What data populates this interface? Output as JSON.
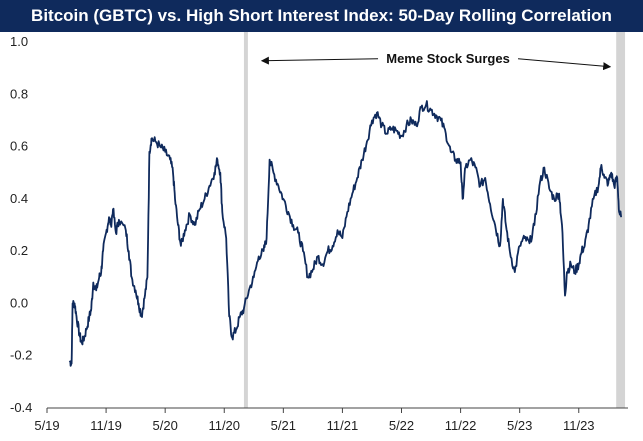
{
  "chart_data": {
    "type": "line",
    "title": "Bitcoin (GBTC) vs. High Short Interest Index: 50-Day Rolling Correlation",
    "xlabel": "",
    "ylabel": "",
    "ylim": [
      -0.4,
      1.0
    ],
    "y_ticks": [
      -0.4,
      -0.2,
      0.0,
      0.2,
      0.4,
      0.6,
      0.8,
      1.0
    ],
    "y_tick_labels": [
      "-0.4",
      "-0.2",
      "0.0",
      "0.2",
      "0.4",
      "0.6",
      "0.8",
      "1.0"
    ],
    "x_ticks": [
      "2019-05",
      "2019-11",
      "2020-05",
      "2020-11",
      "2021-05",
      "2021-11",
      "2022-05",
      "2022-11",
      "2023-05",
      "2023-11"
    ],
    "x_tick_labels": [
      "5/19",
      "11/19",
      "5/20",
      "11/20",
      "5/21",
      "11/21",
      "5/22",
      "11/22",
      "5/23",
      "11/23"
    ],
    "xlim": [
      "2019-05",
      "2024-04"
    ],
    "line_color": "#0f2a5c",
    "shade_color": "#d4d4d4",
    "grid": false,
    "legend": "none",
    "shaded_periods": [
      {
        "start": "2021-01",
        "end": "2021-01.4"
      },
      {
        "start": "2024-02.8",
        "end": "2024-03.7"
      }
    ],
    "annotation": {
      "text": "Meme Stock Surges",
      "arrow_from": "2021-01.4",
      "arrow_to": "2024-02.8",
      "y": 0.89
    },
    "series": [
      {
        "points": [
          [
            "2019-07.3",
            -0.22
          ],
          [
            "2019-07.5",
            -0.23
          ],
          [
            "2019-07.6",
            0.0
          ],
          [
            "2019-07.8",
            0.0
          ],
          [
            "2019-08.0",
            -0.05
          ],
          [
            "2019-08.3",
            -0.12
          ],
          [
            "2019-08.5",
            -0.15
          ],
          [
            "2019-08.7",
            -0.14
          ],
          [
            "2019-09.0",
            -0.1
          ],
          [
            "2019-09.3",
            -0.05
          ],
          [
            "2019-09.5",
            -0.02
          ],
          [
            "2019-09.7",
            0.08
          ],
          [
            "2019-10.0",
            0.05
          ],
          [
            "2019-10.3",
            0.1
          ],
          [
            "2019-10.5",
            0.12
          ],
          [
            "2019-10.7",
            0.2
          ],
          [
            "2019-11.0",
            0.27
          ],
          [
            "2019-11.3",
            0.33
          ],
          [
            "2019-11.5",
            0.3
          ],
          [
            "2019-11.7",
            0.36
          ],
          [
            "2019-12.0",
            0.27
          ],
          [
            "2019-12.3",
            0.32
          ],
          [
            "2020-01.0",
            0.28
          ],
          [
            "2020-01.3",
            0.2
          ],
          [
            "2020-01.6",
            0.1
          ],
          [
            "2020-02.0",
            0.05
          ],
          [
            "2020-02.3",
            0.0
          ],
          [
            "2020-02.6",
            -0.05
          ],
          [
            "2020-02.9",
            0.02
          ],
          [
            "2020-03.2",
            0.1
          ],
          [
            "2020-03.4",
            0.58
          ],
          [
            "2020-03.6",
            0.63
          ],
          [
            "2020-04.0",
            0.62
          ],
          [
            "2020-04.5",
            0.6
          ],
          [
            "2020-05.0",
            0.58
          ],
          [
            "2020-05.5",
            0.55
          ],
          [
            "2020-05.8",
            0.5
          ],
          [
            "2020-06.0",
            0.4
          ],
          [
            "2020-06.3",
            0.3
          ],
          [
            "2020-06.6",
            0.22
          ],
          [
            "2020-07.0",
            0.28
          ],
          [
            "2020-07.5",
            0.34
          ],
          [
            "2020-08.0",
            0.3
          ],
          [
            "2020-08.5",
            0.36
          ],
          [
            "2020-09.0",
            0.4
          ],
          [
            "2020-09.5",
            0.45
          ],
          [
            "2020-10.0",
            0.5
          ],
          [
            "2020-10.3",
            0.55
          ],
          [
            "2020-10.6",
            0.5
          ],
          [
            "2020-10.8",
            0.35
          ],
          [
            "2020-11.2",
            0.25
          ],
          [
            "2020-11.5",
            -0.05
          ],
          [
            "2020-11.8",
            -0.13
          ],
          [
            "2020-12.2",
            -0.1
          ],
          [
            "2020-12.6",
            -0.05
          ],
          [
            "2021-01.0",
            -0.02
          ],
          [
            "2021-01.5",
            0.05
          ],
          [
            "2021-02.0",
            0.1
          ],
          [
            "2021-02.5",
            0.18
          ],
          [
            "2021-03.0",
            0.2
          ],
          [
            "2021-03.3",
            0.25
          ],
          [
            "2021-03.6",
            0.55
          ],
          [
            "2021-04.0",
            0.5
          ],
          [
            "2021-04.5",
            0.45
          ],
          [
            "2021-05.0",
            0.4
          ],
          [
            "2021-05.5",
            0.35
          ],
          [
            "2021-06.0",
            0.3
          ],
          [
            "2021-06.5",
            0.27
          ],
          [
            "2021-07.0",
            0.2
          ],
          [
            "2021-07.5",
            0.1
          ],
          [
            "2021-08.0",
            0.13
          ],
          [
            "2021-08.5",
            0.18
          ],
          [
            "2021-09.0",
            0.15
          ],
          [
            "2021-09.5",
            0.2
          ],
          [
            "2021-10.0",
            0.22
          ],
          [
            "2021-10.5",
            0.28
          ],
          [
            "2021-11.0",
            0.25
          ],
          [
            "2021-11.5",
            0.35
          ],
          [
            "2021-12.0",
            0.42
          ],
          [
            "2021-12.5",
            0.48
          ],
          [
            "2022-01.0",
            0.55
          ],
          [
            "2022-01.5",
            0.62
          ],
          [
            "2022-02.0",
            0.7
          ],
          [
            "2022-02.5",
            0.73
          ],
          [
            "2022-03.0",
            0.68
          ],
          [
            "2022-03.5",
            0.65
          ],
          [
            "2022-04.0",
            0.67
          ],
          [
            "2022-04.5",
            0.66
          ],
          [
            "2022-05.0",
            0.64
          ],
          [
            "2022-05.5",
            0.68
          ],
          [
            "2022-06.0",
            0.7
          ],
          [
            "2022-06.5",
            0.68
          ],
          [
            "2022-07.0",
            0.75
          ],
          [
            "2022-07.5",
            0.76
          ],
          [
            "2022-08.0",
            0.74
          ],
          [
            "2022-08.5",
            0.72
          ],
          [
            "2022-09.0",
            0.7
          ],
          [
            "2022-09.5",
            0.65
          ],
          [
            "2022-10.0",
            0.58
          ],
          [
            "2022-10.5",
            0.55
          ],
          [
            "2022-11.0",
            0.54
          ],
          [
            "2022-11.2",
            0.4
          ],
          [
            "2022-11.5",
            0.52
          ],
          [
            "2022-12.0",
            0.55
          ],
          [
            "2022-12.5",
            0.52
          ],
          [
            "2023-01.0",
            0.45
          ],
          [
            "2023-01.5",
            0.48
          ],
          [
            "2023-02.0",
            0.38
          ],
          [
            "2023-02.5",
            0.3
          ],
          [
            "2023-03.0",
            0.22
          ],
          [
            "2023-03.3",
            0.4
          ],
          [
            "2023-03.6",
            0.3
          ],
          [
            "2023-04.0",
            0.2
          ],
          [
            "2023-04.5",
            0.12
          ],
          [
            "2023-05.0",
            0.22
          ],
          [
            "2023-05.5",
            0.25
          ],
          [
            "2023-06.0",
            0.23
          ],
          [
            "2023-06.5",
            0.3
          ],
          [
            "2023-07.0",
            0.45
          ],
          [
            "2023-07.5",
            0.52
          ],
          [
            "2023-08.0",
            0.44
          ],
          [
            "2023-08.5",
            0.4
          ],
          [
            "2023-09.0",
            0.42
          ],
          [
            "2023-09.3",
            0.3
          ],
          [
            "2023-09.6",
            0.03
          ],
          [
            "2023-09.8",
            0.12
          ],
          [
            "2023-10.2",
            0.15
          ],
          [
            "2023-10.6",
            0.12
          ],
          [
            "2023-11.0",
            0.15
          ],
          [
            "2023-11.3",
            0.2
          ],
          [
            "2023-11.6",
            0.22
          ],
          [
            "2023-12.0",
            0.3
          ],
          [
            "2023-12.5",
            0.4
          ],
          [
            "2024-01.0",
            0.45
          ],
          [
            "2024-01.3",
            0.53
          ],
          [
            "2024-01.6",
            0.48
          ],
          [
            "2024-02.0",
            0.46
          ],
          [
            "2024-02.3",
            0.5
          ],
          [
            "2024-02.6",
            0.45
          ],
          [
            "2024-02.9",
            0.48
          ],
          [
            "2024-03.1",
            0.35
          ],
          [
            "2024-03.3",
            0.33
          ]
        ]
      }
    ]
  }
}
